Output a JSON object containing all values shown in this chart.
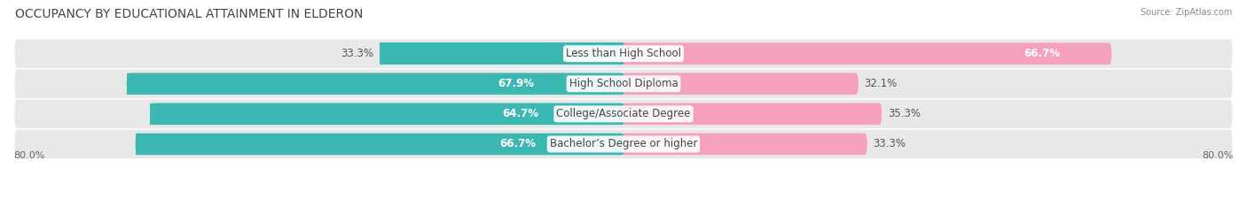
{
  "title": "OCCUPANCY BY EDUCATIONAL ATTAINMENT IN ELDERON",
  "source": "Source: ZipAtlas.com",
  "categories": [
    "Less than High School",
    "High School Diploma",
    "College/Associate Degree",
    "Bachelor’s Degree or higher"
  ],
  "owner_pct": [
    33.3,
    67.9,
    64.7,
    66.7
  ],
  "renter_pct": [
    66.7,
    32.1,
    35.3,
    33.3
  ],
  "owner_color": "#3cb8b2",
  "renter_color": "#f5a0bc",
  "row_bg_color": "#e8e8e8",
  "title_fontsize": 10,
  "label_fontsize": 8.5,
  "cat_fontsize": 8.5,
  "axis_label_fontsize": 8,
  "legend_fontsize": 8.5,
  "x_left_label": "80.0%",
  "x_right_label": "80.0%",
  "bar_height": 0.72,
  "x_max": 80.0
}
